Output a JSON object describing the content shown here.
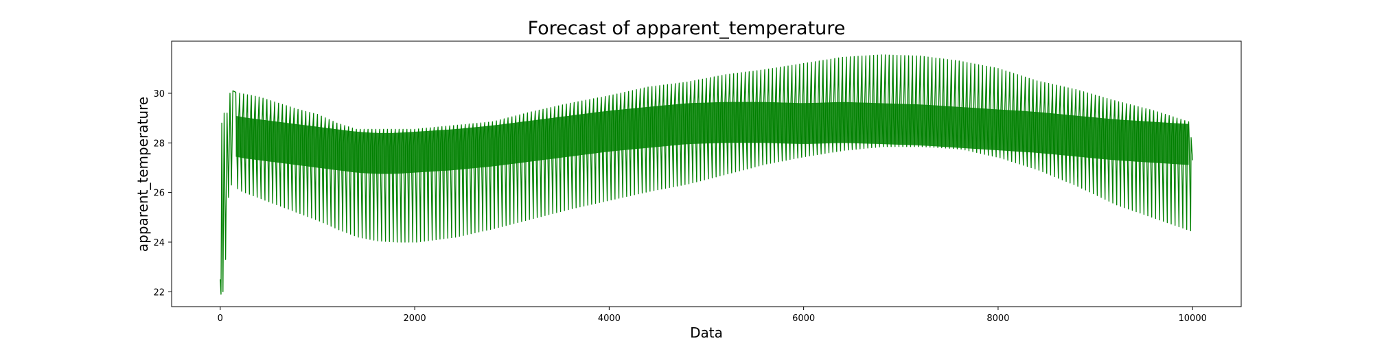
{
  "chart_data": {
    "type": "line",
    "title": "Forecast of apparent_temperature",
    "xlabel": "Data",
    "ylabel": "apparent_temperature",
    "xlim": [
      -500,
      10500
    ],
    "ylim": [
      21.4,
      32.1
    ],
    "xticks": [
      0,
      2000,
      4000,
      6000,
      8000,
      10000
    ],
    "yticks": [
      22,
      24,
      26,
      28,
      30
    ],
    "grid": false,
    "legend": "none",
    "oscillation_period": 40,
    "series": [
      {
        "color": "#008000",
        "x": [
          0,
          100,
          200,
          400,
          600,
          800,
          1000,
          1200,
          1400,
          1600,
          1800,
          2000,
          2400,
          2800,
          3200,
          3600,
          4000,
          4400,
          4800,
          5200,
          5600,
          6000,
          6400,
          6800,
          7200,
          7600,
          8000,
          8400,
          8800,
          9200,
          9600,
          10000
        ],
        "upper": [
          28.8,
          30.1,
          30.0,
          29.85,
          29.6,
          29.35,
          29.15,
          28.8,
          28.55,
          28.55,
          28.55,
          28.55,
          28.7,
          28.85,
          29.25,
          29.6,
          29.9,
          30.25,
          30.45,
          30.75,
          30.95,
          31.2,
          31.45,
          31.55,
          31.5,
          31.3,
          31.0,
          30.5,
          30.15,
          29.7,
          29.3,
          28.8
        ],
        "center": [
          28.0,
          28.6,
          28.5,
          28.4,
          28.3,
          28.2,
          28.1,
          28.0,
          27.9,
          27.85,
          27.85,
          27.9,
          28.0,
          28.15,
          28.35,
          28.55,
          28.75,
          28.9,
          29.05,
          29.1,
          29.1,
          29.05,
          29.1,
          29.05,
          29.0,
          28.9,
          28.8,
          28.7,
          28.55,
          28.4,
          28.3,
          28.2
        ],
        "lower": [
          21.9,
          26.3,
          26.05,
          25.75,
          25.45,
          25.15,
          24.85,
          24.5,
          24.2,
          24.05,
          24.0,
          24.0,
          24.2,
          24.55,
          24.95,
          25.35,
          25.7,
          26.05,
          26.35,
          26.75,
          27.15,
          27.45,
          27.7,
          27.85,
          27.85,
          27.75,
          27.4,
          26.9,
          26.25,
          25.5,
          24.95,
          24.4
        ],
        "last_value": 27.3
      }
    ]
  }
}
